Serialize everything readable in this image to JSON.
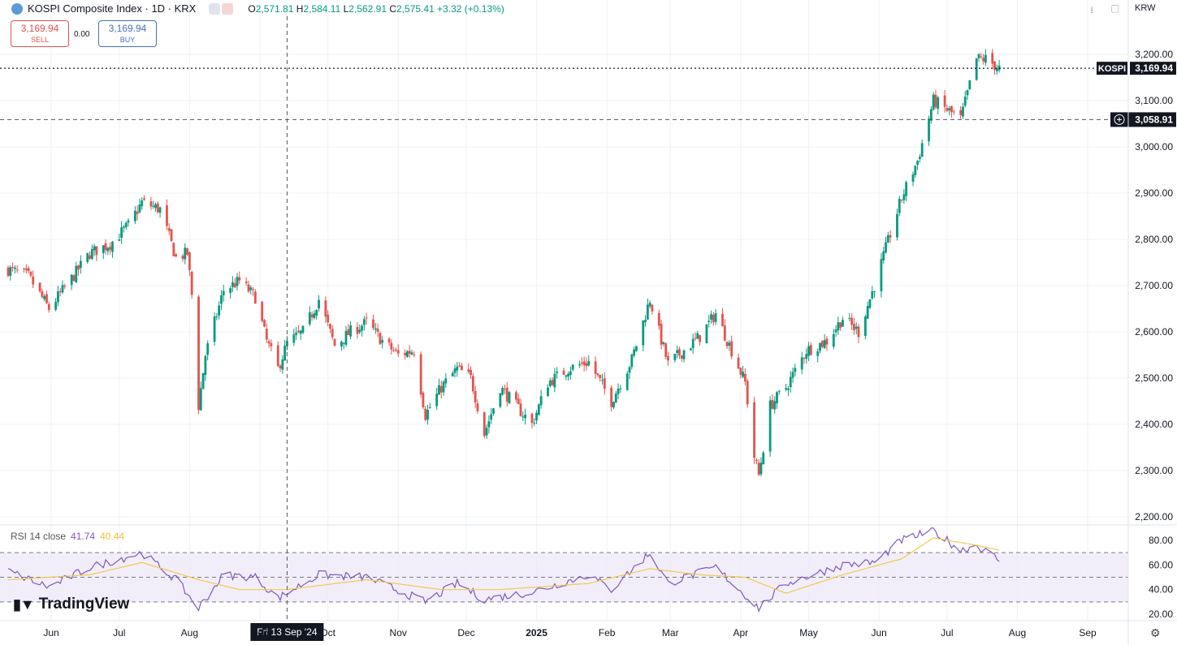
{
  "header": {
    "symbol_title": "KOSPI Composite Index · 1D · KRX",
    "ohlc": {
      "o_label": "O",
      "o": "2,571.81",
      "h_label": "H",
      "h": "2,584.11",
      "l_label": "L",
      "l": "2,562.91",
      "c_label": "C",
      "c": "2,575.41",
      "chg": "+3.32 (+0.13%)"
    },
    "currency": "KRW"
  },
  "trade": {
    "sell_price": "3,169.94",
    "sell_label": "SELL",
    "spread": "0.00",
    "buy_price": "3,169.94",
    "buy_label": "BUY"
  },
  "rsi": {
    "label": "RSI 14 close",
    "rsi_value": "41.74",
    "ma_value": "40.44"
  },
  "branding": {
    "name": "TradingView"
  },
  "crosshair_date": "Fri 13 Sep '24",
  "price_tags": {
    "kospi_label": "KOSPI",
    "kospi_value": "3,169.94",
    "crosshair_value": "3,058.91"
  },
  "colors": {
    "up": "#089981",
    "down": "#e3534d",
    "rsi": "#7e57c2",
    "rsi_ma": "#f2c94c",
    "grid": "#eef1f6",
    "band": "#ede7f6"
  },
  "chart_data": [
    {
      "type": "candlestick",
      "title": "KOSPI Composite Index · 1D · KRX",
      "x_start": "2024-05-13",
      "y_ticks": [
        "3,200.00",
        "3,100.00",
        "3,000.00",
        "2,900.00",
        "2,800.00",
        "2,700.00",
        "2,600.00",
        "2,500.00",
        "2,400.00",
        "2,300.00",
        "2,200.00"
      ],
      "ylim": [
        2200,
        3200
      ],
      "x_ticks": [
        {
          "label": "Jun",
          "date": "2024-06-01"
        },
        {
          "label": "Jul",
          "date": "2024-07-01"
        },
        {
          "label": "Aug",
          "date": "2024-08-01"
        },
        {
          "label": "Sep",
          "date": "2024-09-01"
        },
        {
          "label": "Oct",
          "date": "2024-10-01"
        },
        {
          "label": "Nov",
          "date": "2024-11-01"
        },
        {
          "label": "Dec",
          "date": "2024-12-01"
        },
        {
          "label": "2025",
          "date": "2025-01-01"
        },
        {
          "label": "Feb",
          "date": "2025-02-01"
        },
        {
          "label": "Mar",
          "date": "2025-03-01"
        },
        {
          "label": "Apr",
          "date": "2025-04-01"
        },
        {
          "label": "May",
          "date": "2025-05-01"
        },
        {
          "label": "Jun",
          "date": "2025-06-01"
        },
        {
          "label": "Jul",
          "date": "2025-07-01"
        },
        {
          "label": "Aug",
          "date": "2025-08-01"
        },
        {
          "label": "Sep",
          "date": "2025-09-01"
        }
      ],
      "close_path": [
        [
          "2024-05-13",
          2735
        ],
        [
          "2024-05-22",
          2720
        ],
        [
          "2024-05-31",
          2650
        ],
        [
          "2024-06-10",
          2715
        ],
        [
          "2024-06-18",
          2770
        ],
        [
          "2024-06-27",
          2790
        ],
        [
          "2024-07-05",
          2830
        ],
        [
          "2024-07-11",
          2880
        ],
        [
          "2024-07-19",
          2865
        ],
        [
          "2024-07-26",
          2760
        ],
        [
          "2024-07-31",
          2770
        ],
        [
          "2024-08-02",
          2680
        ],
        [
          "2024-08-05",
          2440
        ],
        [
          "2024-08-08",
          2550
        ],
        [
          "2024-08-16",
          2690
        ],
        [
          "2024-08-23",
          2710
        ],
        [
          "2024-08-30",
          2675
        ],
        [
          "2024-09-04",
          2580
        ],
        [
          "2024-09-09",
          2520
        ],
        [
          "2024-09-13",
          2575
        ],
        [
          "2024-09-20",
          2600
        ],
        [
          "2024-09-27",
          2670
        ],
        [
          "2024-10-04",
          2570
        ],
        [
          "2024-10-11",
          2600
        ],
        [
          "2024-10-18",
          2620
        ],
        [
          "2024-10-25",
          2580
        ],
        [
          "2024-11-01",
          2550
        ],
        [
          "2024-11-08",
          2560
        ],
        [
          "2024-11-13",
          2420
        ],
        [
          "2024-11-20",
          2480
        ],
        [
          "2024-11-27",
          2520
        ],
        [
          "2024-12-03",
          2500
        ],
        [
          "2024-12-09",
          2380
        ],
        [
          "2024-12-16",
          2480
        ],
        [
          "2024-12-23",
          2440
        ],
        [
          "2024-12-30",
          2400
        ],
        [
          "2025-01-06",
          2490
        ],
        [
          "2025-01-15",
          2520
        ],
        [
          "2025-01-24",
          2535
        ],
        [
          "2025-02-03",
          2450
        ],
        [
          "2025-02-12",
          2540
        ],
        [
          "2025-02-20",
          2670
        ],
        [
          "2025-02-28",
          2530
        ],
        [
          "2025-03-07",
          2560
        ],
        [
          "2025-03-14",
          2590
        ],
        [
          "2025-03-21",
          2640
        ],
        [
          "2025-03-28",
          2560
        ],
        [
          "2025-04-03",
          2490
        ],
        [
          "2025-04-07",
          2330
        ],
        [
          "2025-04-09",
          2290
        ],
        [
          "2025-04-14",
          2440
        ],
        [
          "2025-04-21",
          2480
        ],
        [
          "2025-04-30",
          2560
        ],
        [
          "2025-05-09",
          2580
        ],
        [
          "2025-05-16",
          2630
        ],
        [
          "2025-05-23",
          2600
        ],
        [
          "2025-05-30",
          2700
        ],
        [
          "2025-06-04",
          2780
        ],
        [
          "2025-06-11",
          2890
        ],
        [
          "2025-06-18",
          2970
        ],
        [
          "2025-06-25",
          3100
        ],
        [
          "2025-07-01",
          3080
        ],
        [
          "2025-07-07",
          3060
        ],
        [
          "2025-07-14",
          3190
        ],
        [
          "2025-07-18",
          3190
        ],
        [
          "2025-07-24",
          3169.94
        ]
      ],
      "last_price": 3169.94,
      "crosshair_price": 3058.91,
      "crosshair_date": "2024-09-13"
    },
    {
      "type": "line",
      "title": "RSI 14 close",
      "y_ticks": [
        "80.00",
        "60.00",
        "40.00",
        "20.00"
      ],
      "ylim": [
        20,
        80
      ],
      "bands": {
        "upper": 70,
        "middle": 50,
        "lower": 30
      },
      "series": [
        {
          "name": "RSI",
          "values": [
            [
              "2024-05-13",
              55
            ],
            [
              "2024-05-31",
              42
            ],
            [
              "2024-06-18",
              58
            ],
            [
              "2024-07-11",
              70
            ],
            [
              "2024-07-26",
              48
            ],
            [
              "2024-08-05",
              25
            ],
            [
              "2024-08-16",
              52
            ],
            [
              "2024-08-30",
              50
            ],
            [
              "2024-09-09",
              33
            ],
            [
              "2024-09-27",
              52
            ],
            [
              "2024-10-18",
              50
            ],
            [
              "2024-11-13",
              30
            ],
            [
              "2024-11-27",
              45
            ],
            [
              "2024-12-09",
              32
            ],
            [
              "2024-12-30",
              38
            ],
            [
              "2025-01-24",
              52
            ],
            [
              "2025-02-03",
              40
            ],
            [
              "2025-02-20",
              70
            ],
            [
              "2025-02-28",
              45
            ],
            [
              "2025-03-21",
              58
            ],
            [
              "2025-04-09",
              25
            ],
            [
              "2025-04-21",
              45
            ],
            [
              "2025-05-16",
              60
            ],
            [
              "2025-05-30",
              62
            ],
            [
              "2025-06-11",
              80
            ],
            [
              "2025-06-25",
              88
            ],
            [
              "2025-07-07",
              72
            ],
            [
              "2025-07-14",
              76
            ],
            [
              "2025-07-24",
              64
            ]
          ]
        },
        {
          "name": "RSI MA",
          "values": [
            [
              "2024-05-13",
              48
            ],
            [
              "2024-06-18",
              52
            ],
            [
              "2024-07-11",
              62
            ],
            [
              "2024-08-05",
              48
            ],
            [
              "2024-08-23",
              40
            ],
            [
              "2024-09-13",
              40
            ],
            [
              "2024-10-18",
              48
            ],
            [
              "2024-11-20",
              40
            ],
            [
              "2024-12-16",
              40
            ],
            [
              "2025-01-24",
              45
            ],
            [
              "2025-02-20",
              57
            ],
            [
              "2025-03-14",
              52
            ],
            [
              "2025-04-03",
              50
            ],
            [
              "2025-04-21",
              37
            ],
            [
              "2025-05-16",
              52
            ],
            [
              "2025-06-11",
              65
            ],
            [
              "2025-06-25",
              82
            ],
            [
              "2025-07-14",
              76
            ],
            [
              "2025-07-24",
              72
            ]
          ]
        }
      ]
    }
  ]
}
